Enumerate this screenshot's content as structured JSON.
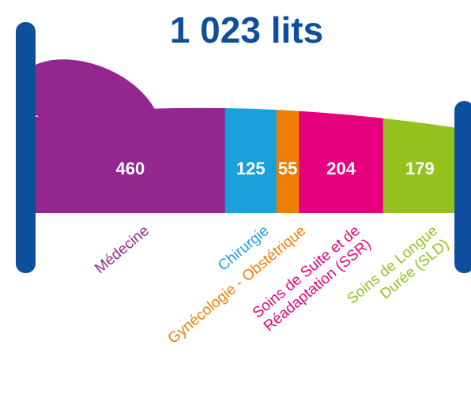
{
  "chart_data": {
    "type": "bar",
    "title": "1 023 lits",
    "categories": [
      "Médecine",
      "Chirurgie",
      "Gynécologie - Obstétrique",
      "Soins de Suite et de\nRéadaptation (SSR)",
      "Soins de Longue\nDurée (SLD)"
    ],
    "values": [
      460,
      125,
      55,
      204,
      179
    ],
    "colors": [
      "#93278f",
      "#1ca0dc",
      "#ef7d00",
      "#e5007e",
      "#95c11f"
    ]
  }
}
